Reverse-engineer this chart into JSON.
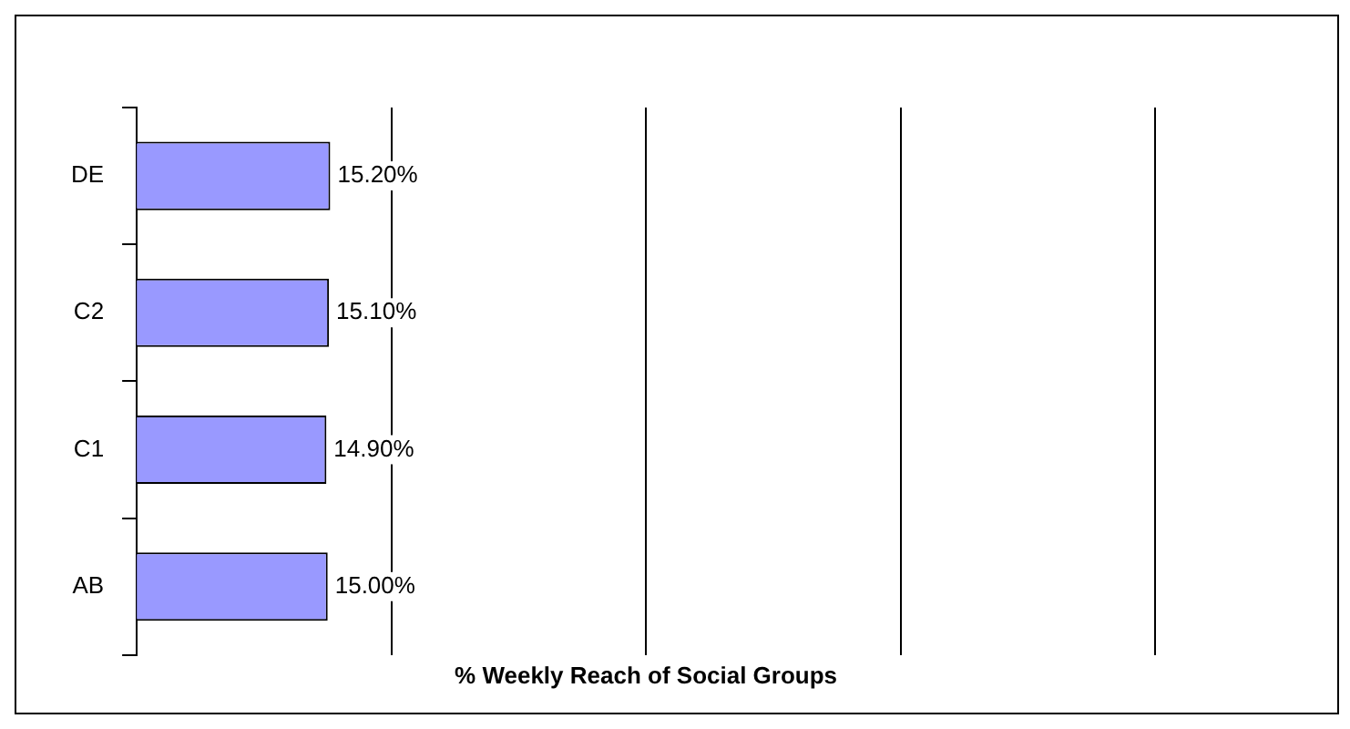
{
  "chart_data": {
    "type": "bar",
    "orientation": "horizontal",
    "categories": [
      "DE",
      "C2",
      "C1",
      "AB"
    ],
    "values": [
      15.2,
      15.1,
      14.9,
      15.0
    ],
    "value_labels": [
      "15.20%",
      "15.10%",
      "14.90%",
      "15.00%"
    ],
    "color": "#9999ff",
    "xlabel": "% Weekly Reach of Social Groups",
    "xlim": [
      0,
      80
    ],
    "xticks": [
      {
        "value": 20,
        "label": null
      },
      {
        "value": 40,
        "label": null
      },
      {
        "value": 60,
        "label": null
      },
      {
        "value": 80,
        "label": null
      }
    ],
    "tick_labels": "y",
    "grid": "x",
    "legend": false
  }
}
